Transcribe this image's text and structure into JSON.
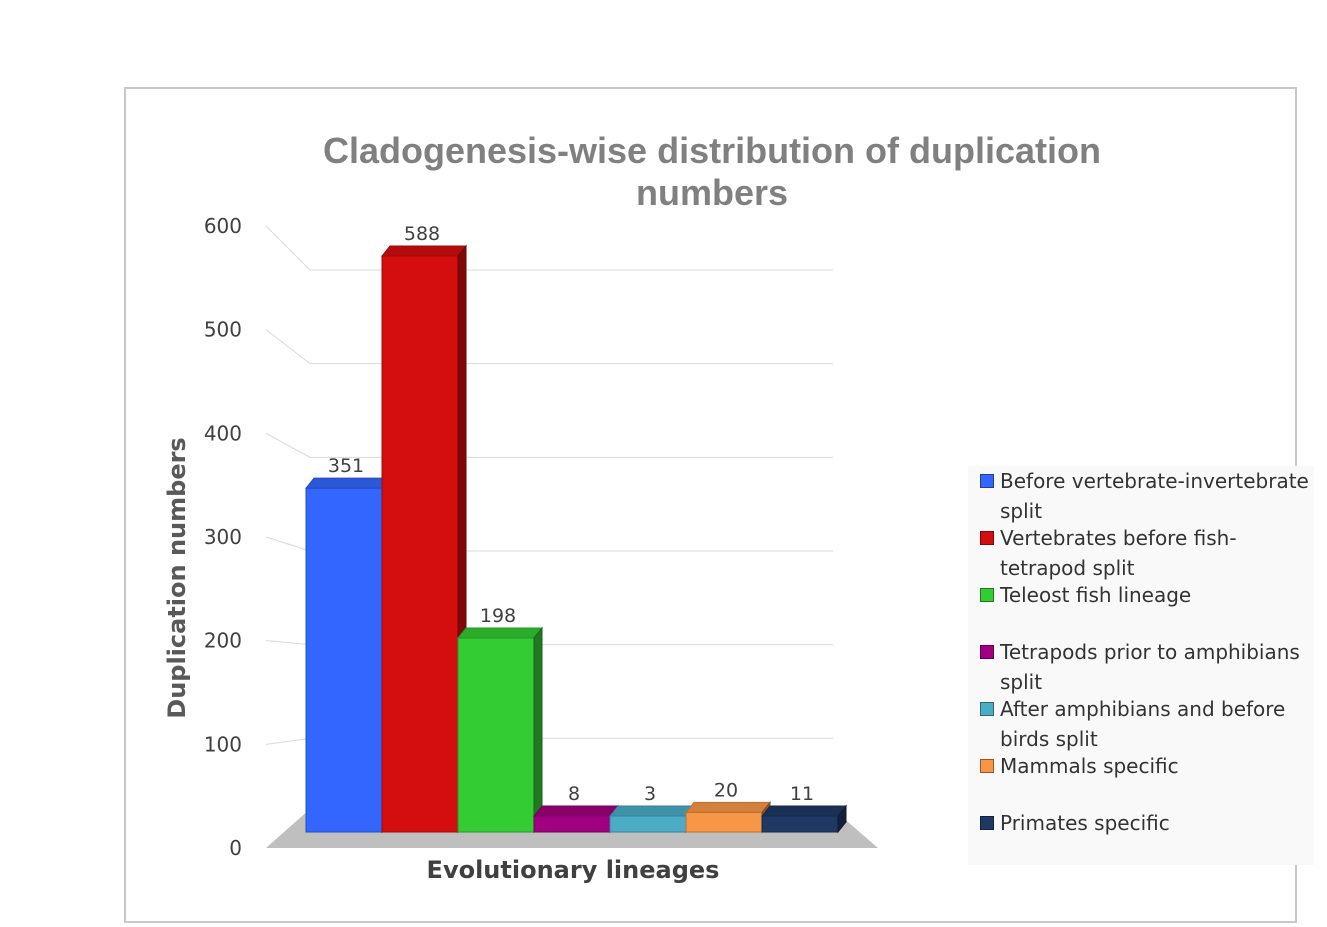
{
  "chart_data": {
    "type": "bar",
    "title": "Cladogenesis-wise distribution of duplication numbers",
    "xlabel": "Evolutionary lineages",
    "ylabel": "Duplication numbers",
    "ylim": [
      0,
      600
    ],
    "yticks": [
      0,
      100,
      200,
      300,
      400,
      500,
      600
    ],
    "grid": true,
    "legend_position": "right",
    "three_d": true,
    "series": [
      {
        "name": "Before vertebrate-invertebrate split",
        "value": 351,
        "color": "#3366ff"
      },
      {
        "name": "Vertebrates before fish-tetrapod split",
        "value": 588,
        "color": "#d40e0e"
      },
      {
        "name": "Teleost fish lineage",
        "value": 198,
        "color": "#33cc33"
      },
      {
        "name": "Tetrapods prior to amphibians split",
        "value": 8,
        "color": "#a0007f"
      },
      {
        "name": "After amphibians and before birds split",
        "value": 3,
        "color": "#4bacc6"
      },
      {
        "name": "Mammals specific",
        "value": 20,
        "color": "#f79646"
      },
      {
        "name": "Primates specific",
        "value": 11,
        "color": "#1f3864"
      }
    ]
  }
}
